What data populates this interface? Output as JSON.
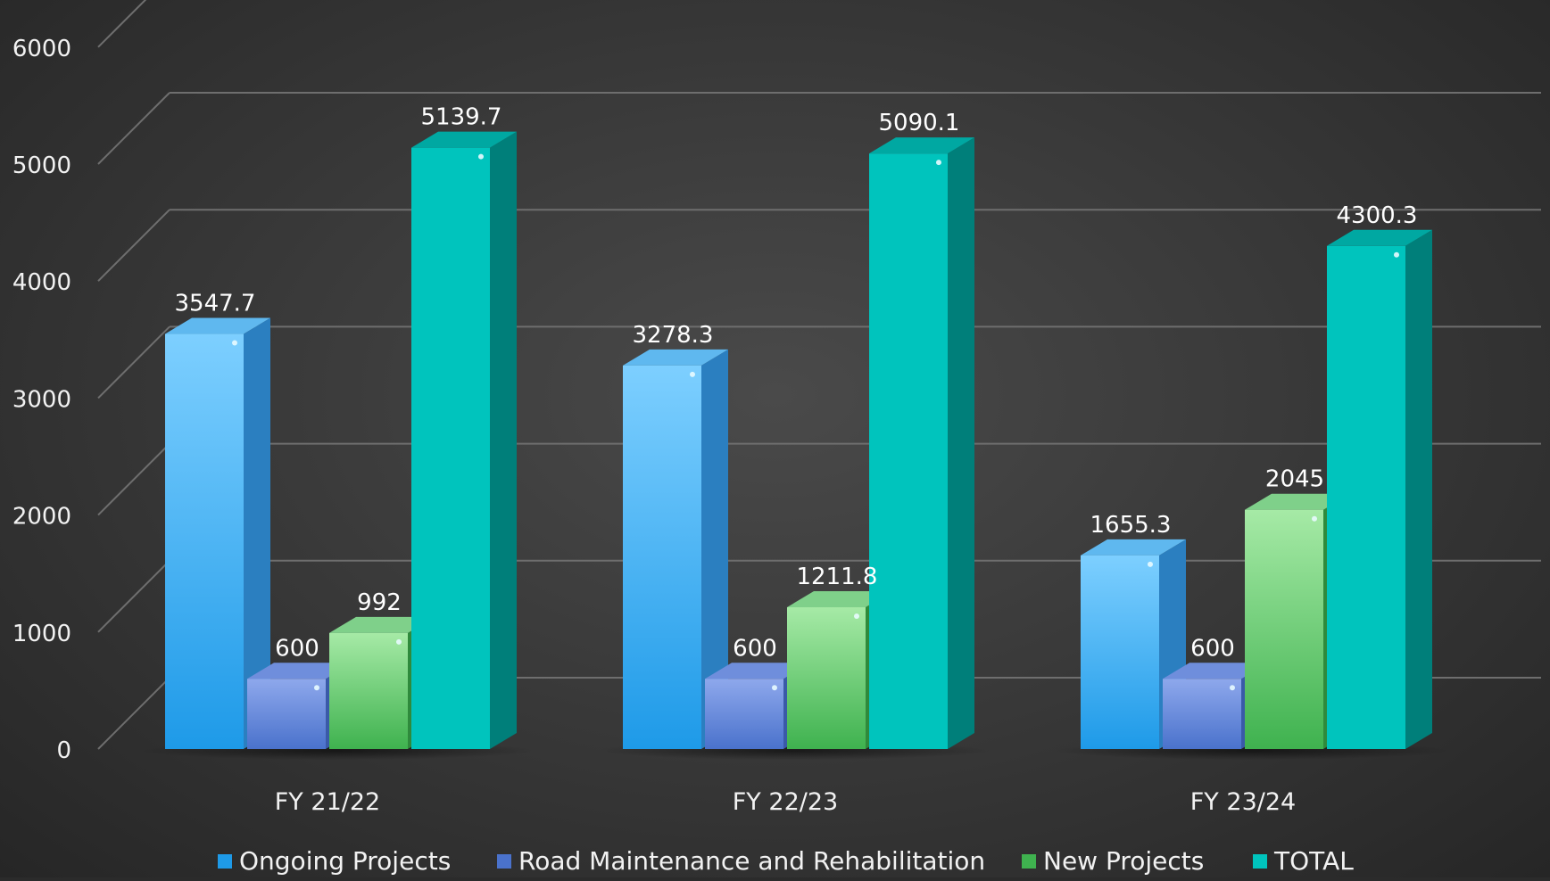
{
  "chart_data": {
    "type": "bar",
    "title": "",
    "xlabel": "",
    "ylabel": "",
    "ylim": [
      0,
      6000
    ],
    "yticks": [
      0,
      1000,
      2000,
      3000,
      4000,
      5000,
      6000
    ],
    "ytick_labels": [
      "0",
      "1000",
      "2000",
      "3000",
      "4000",
      "5000",
      "6000"
    ],
    "grid": true,
    "three_d": true,
    "legend_position": "bottom",
    "categories": [
      "FY 21/22",
      "FY 22/23",
      "FY 23/24"
    ],
    "series": [
      {
        "name": "Ongoing Projects",
        "values": [
          3547.7,
          3278.3,
          1655.3
        ],
        "value_labels": [
          "3547.7",
          "3278.3",
          "1655.3"
        ],
        "color_front_top": "#7dcfff",
        "color_front_bottom": "#1e9ae8",
        "color_side": "#2b7fc0",
        "color_top": "#5fb8ef"
      },
      {
        "name": "Road Maintenance and Rehabilitation",
        "values": [
          600,
          600,
          600
        ],
        "value_labels": [
          "600",
          "600",
          "600"
        ],
        "color_front_top": "#8ea8ec",
        "color_front_bottom": "#4a72cc",
        "color_side": "#3a5aa8",
        "color_top": "#6f8edc"
      },
      {
        "name": "New Projects",
        "values": [
          992,
          1211.8,
          2045
        ],
        "value_labels": [
          "992",
          "1211.8",
          "2045"
        ],
        "color_front_top": "#a6eaa6",
        "color_front_bottom": "#3fb24f",
        "color_side": "#2f8a3c",
        "color_top": "#7fd08a"
      },
      {
        "name": "TOTAL",
        "values": [
          5139.7,
          5090.1,
          4300.3
        ],
        "value_labels": [
          "5139.7",
          "5090.1",
          "4300.3"
        ],
        "color_front_top": "#00c4bd",
        "color_front_bottom": "#00c4bd",
        "color_side": "#007f7a",
        "color_top": "#00a8a2"
      }
    ]
  },
  "colors": {
    "grid": "#6e6e6e",
    "text": "#ffffff",
    "axis_text": "#f2f2f2"
  }
}
